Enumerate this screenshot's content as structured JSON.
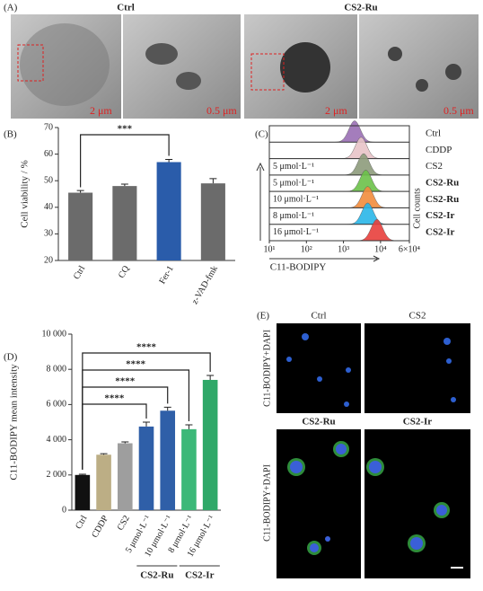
{
  "panel_a": {
    "label": "(A)",
    "images": [
      {
        "title": "Ctrl",
        "scale_bars": [
          "2 μm",
          "0.5 μm"
        ]
      },
      {
        "title": "CS2-Ru",
        "scale_bars": [
          "2 μm",
          "0.5 μm"
        ]
      }
    ]
  },
  "chart_data": [
    {
      "type": "bar",
      "label": "(B)",
      "ylabel": "Cell viability / %",
      "categories": [
        "Ctrl",
        "CQ",
        "Fer-1",
        "z-VAD-fmk"
      ],
      "values": [
        45.5,
        48,
        57,
        49
      ],
      "errors": [
        0.8,
        0.7,
        1,
        1.8
      ],
      "colors": [
        "#6b6b6b",
        "#6b6b6b",
        "#2a5caa",
        "#6b6b6b"
      ],
      "ylim": [
        20,
        70
      ],
      "yticks": [
        20,
        30,
        40,
        50,
        60,
        70
      ],
      "annotations": [
        {
          "from": 0,
          "to": 2,
          "text": "***"
        }
      ]
    },
    {
      "type": "ridgeline",
      "label": "(C)",
      "xlabel": "C11-BODIPY",
      "ylabel": "Cell counts",
      "log_x": true,
      "xlim": [
        10,
        60000
      ],
      "xticks": [
        {
          "value": 10,
          "label": "10¹"
        },
        {
          "value": 100,
          "label": "10²"
        },
        {
          "value": 1000,
          "label": "10³"
        },
        {
          "value": 10000,
          "label": "10⁴"
        },
        {
          "value": 60000,
          "label": "6×10⁴"
        }
      ],
      "series": [
        {
          "name": "Ctrl",
          "concentration": null,
          "color": "#9b6fb5",
          "values": [
            2000
          ]
        },
        {
          "name": "CDDP",
          "concentration": null,
          "color": "#e8c4c8",
          "values": [
            3000
          ]
        },
        {
          "name": "CS2",
          "concentration": "5 μmol·L⁻¹",
          "color": "#8d9c7c",
          "values": [
            3500
          ]
        },
        {
          "name": "CS2-Ru",
          "concentration": "5 μmol·L⁻¹",
          "color": "#6cc24a",
          "values": [
            4000
          ]
        },
        {
          "name": "CS2-Ru",
          "concentration": "10 μmol·L⁻¹",
          "color": "#f28c3c",
          "values": [
            4500
          ]
        },
        {
          "name": "CS2-Ir",
          "concentration": "8 μmol·L⁻¹",
          "color": "#2ab6e8",
          "values": [
            4500
          ]
        },
        {
          "name": "CS2-Ir",
          "concentration": "16 μmol·L⁻¹",
          "color": "#e8403c",
          "values": [
            8000
          ]
        }
      ]
    },
    {
      "type": "bar",
      "label": "(D)",
      "ylabel": "C11-BODIPY mean intensity",
      "categories": [
        "Ctrl",
        "CDDP",
        "CS2",
        "5 μmol·L⁻¹",
        "10 μmol·L⁻¹",
        "8 μmol·L⁻¹",
        "16 μmol·L⁻¹"
      ],
      "values": [
        2000,
        3150,
        3800,
        4750,
        5650,
        4600,
        7400
      ],
      "errors": [
        40,
        60,
        80,
        250,
        200,
        250,
        250
      ],
      "colors": [
        "#111111",
        "#bcae85",
        "#9e9e9e",
        "#2f5fa8",
        "#2f5fa8",
        "#3cb878",
        "#2fa868"
      ],
      "ylim": [
        0,
        10000
      ],
      "yticks": [
        0,
        {
          "value": 2000,
          "label": "2 000"
        },
        {
          "value": 4000,
          "label": "4 000"
        },
        {
          "value": 6000,
          "label": "6 000"
        },
        {
          "value": 8000,
          "label": "8 000"
        },
        {
          "value": 10000,
          "label": "10 000"
        }
      ],
      "annotations": [
        {
          "from": 0,
          "to": 3,
          "text": "****"
        },
        {
          "from": 0,
          "to": 4,
          "text": "****"
        },
        {
          "from": 0,
          "to": 5,
          "text": "****"
        },
        {
          "from": 0,
          "to": 6,
          "text": "****"
        }
      ],
      "groups": [
        {
          "name": "CS2-Ru",
          "from": 3,
          "to": 4
        },
        {
          "name": "CS2-Ir",
          "from": 5,
          "to": 6
        }
      ]
    }
  ],
  "panel_e": {
    "label": "(E)",
    "y_label": "C11-BODIPY+DAPI",
    "images": [
      "Ctrl",
      "CS2",
      "CS2-Ru",
      "CS2-Ir"
    ]
  }
}
